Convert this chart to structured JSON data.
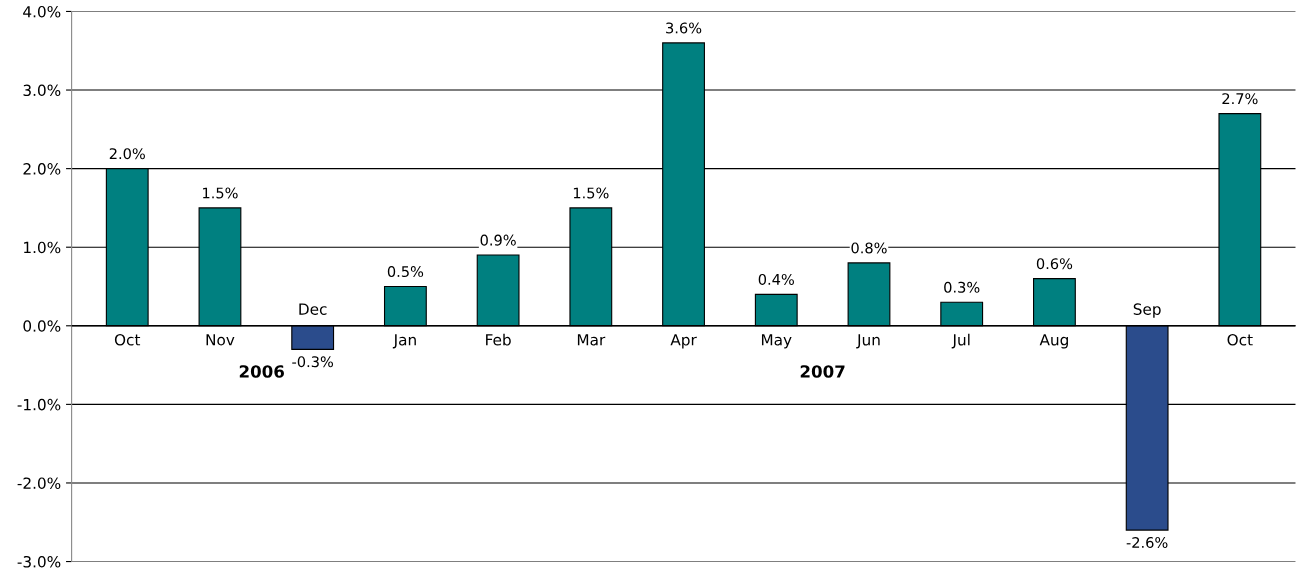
{
  "chart_data": {
    "type": "bar",
    "categories": [
      "Oct",
      "Nov",
      "Dec",
      "Jan",
      "Feb",
      "Mar",
      "Apr",
      "May",
      "Jun",
      "Jul",
      "Aug",
      "Sep",
      "Oct"
    ],
    "values": [
      2.0,
      1.5,
      -0.3,
      0.5,
      0.9,
      1.5,
      3.6,
      0.4,
      0.8,
      0.3,
      0.6,
      -2.6,
      2.7
    ],
    "colors": [
      "#008080",
      "#008080",
      "#2b4c8c",
      "#008080",
      "#008080",
      "#008080",
      "#008080",
      "#008080",
      "#008080",
      "#008080",
      "#008080",
      "#2b4c8c",
      "#008080"
    ],
    "value_labels": [
      "2.0%",
      "1.5%",
      "-0.3%",
      "0.5%",
      "0.9%",
      "1.5%",
      "3.6%",
      "0.4%",
      "0.8%",
      "0.3%",
      "0.6%",
      "-2.6%",
      "2.7%"
    ],
    "annotations": [
      "2006",
      "2007"
    ],
    "ylim": [
      -3,
      4
    ],
    "yticks": [
      {
        "value": -3,
        "label": "-3.0%"
      },
      {
        "value": -2,
        "label": "-2.0%"
      },
      {
        "value": -1,
        "label": "-1.0%"
      },
      {
        "value": 0,
        "label": "0.0%"
      },
      {
        "value": 1,
        "label": "1.0%"
      },
      {
        "value": 2,
        "label": "2.0%"
      },
      {
        "value": 3,
        "label": "3.0%"
      },
      {
        "value": 4,
        "label": "4.0%"
      }
    ],
    "grid": "y"
  }
}
